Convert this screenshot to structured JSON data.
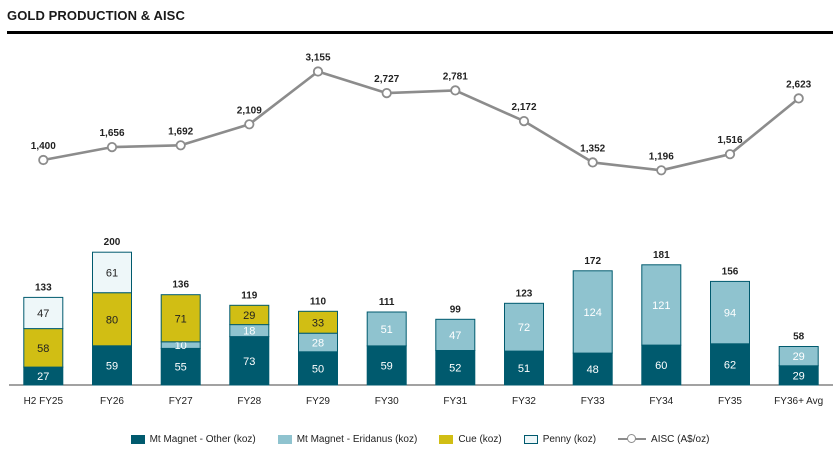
{
  "title": "GOLD PRODUCTION & AISC",
  "chart_data": {
    "type": "bar",
    "stacked": true,
    "categories": [
      "H2 FY25",
      "FY26",
      "FY27",
      "FY28",
      "FY29",
      "FY30",
      "FY31",
      "FY32",
      "FY33",
      "FY34",
      "FY35",
      "FY36+ Avg"
    ],
    "series": [
      {
        "name": "Mt Magnet - Other (koz)",
        "color": "#005a6e",
        "values": [
          27,
          59,
          55,
          73,
          50,
          59,
          52,
          51,
          48,
          60,
          62,
          29
        ]
      },
      {
        "name": "Mt Magnet - Eridanus (koz)",
        "color": "#8fc3cf",
        "values": [
          0,
          0,
          10,
          18,
          28,
          51,
          47,
          72,
          124,
          121,
          94,
          29
        ]
      },
      {
        "name": "Cue (koz)",
        "color": "#d1be14",
        "values": [
          58,
          80,
          71,
          29,
          33,
          0,
          0,
          0,
          0,
          0,
          0,
          0
        ]
      },
      {
        "name": "Penny (koz)",
        "color": "#eef7f9",
        "values": [
          47,
          61,
          0,
          0,
          0,
          0,
          0,
          0,
          0,
          0,
          0,
          0
        ]
      }
    ],
    "totals": [
      133,
      200,
      136,
      119,
      110,
      111,
      99,
      123,
      172,
      181,
      156,
      58
    ],
    "line": {
      "name": "AISC (A$/oz)",
      "color": "#8c8c8c",
      "values": [
        1400,
        1656,
        1692,
        2109,
        3155,
        2727,
        2781,
        2172,
        1352,
        1196,
        1516,
        2623
      ],
      "labels": [
        "1,400",
        "1,656",
        "1,692",
        "2,109",
        "3,155",
        "2,727",
        "2,781",
        "2,172",
        "1,352",
        "1,196",
        "1,516",
        "2,623"
      ]
    },
    "legend_position": "bottom",
    "grid": false
  }
}
